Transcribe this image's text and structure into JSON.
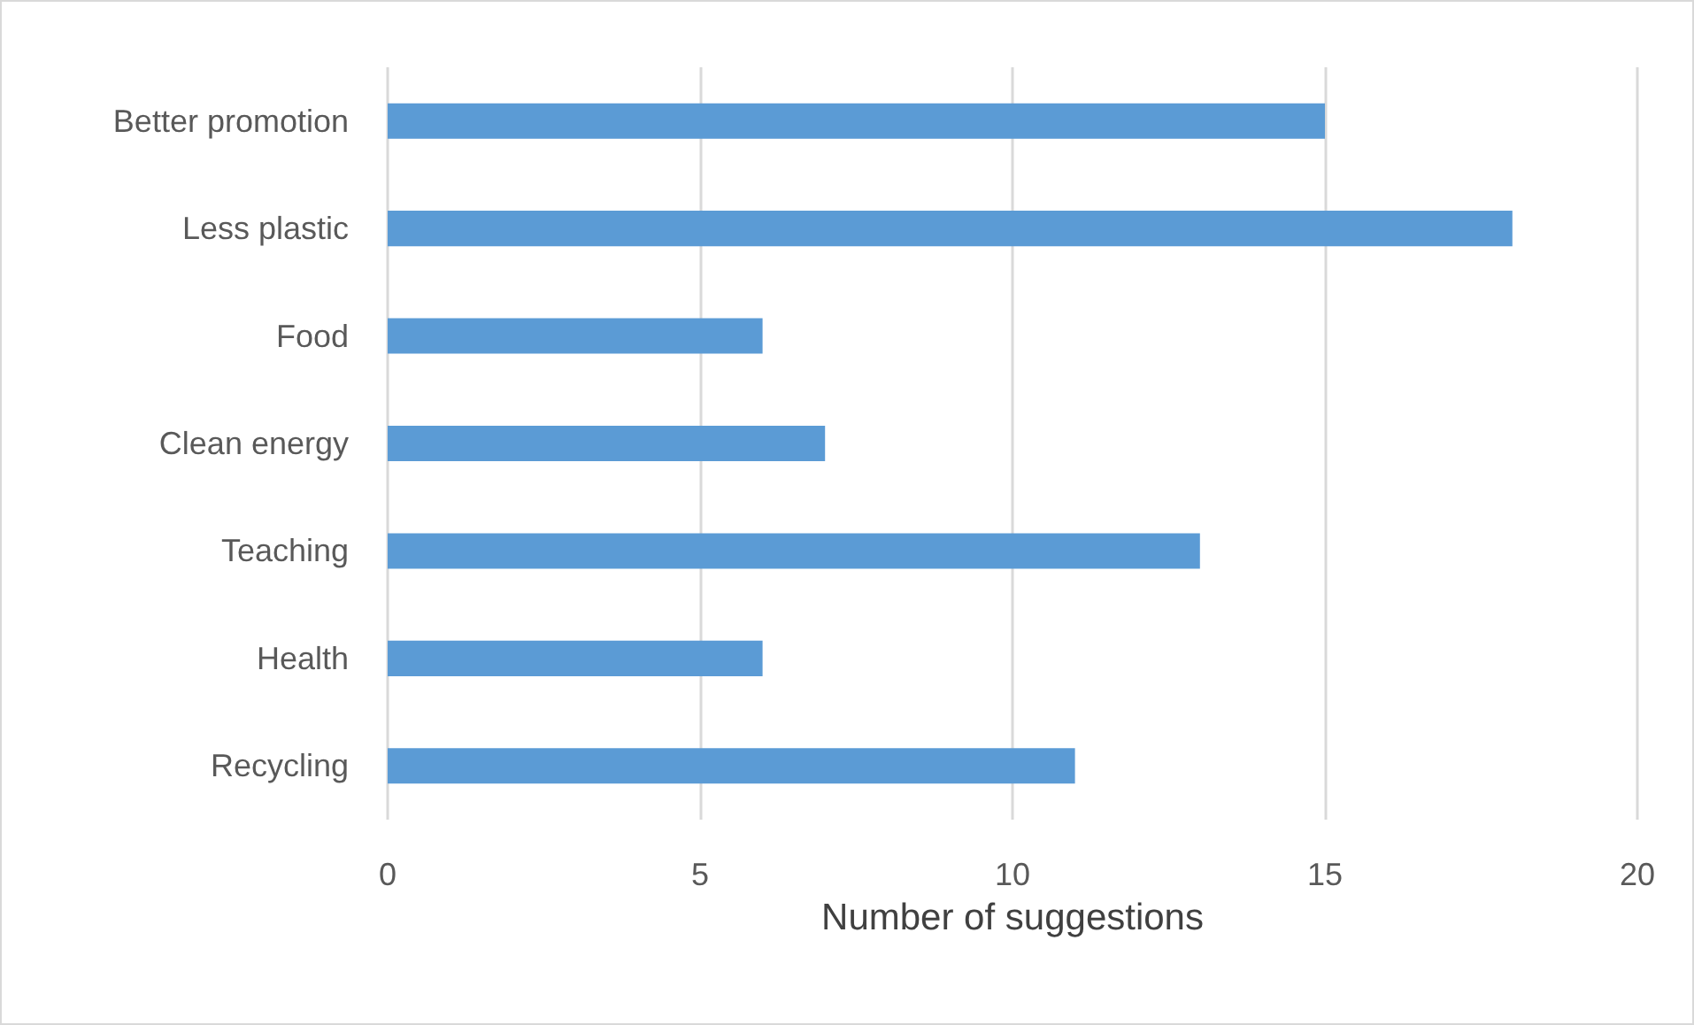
{
  "chart_data": {
    "type": "bar",
    "orientation": "horizontal",
    "categories": [
      "Better promotion",
      "Less plastic",
      "Food",
      "Clean energy",
      "Teaching",
      "Health",
      "Recycling"
    ],
    "values": [
      15,
      18,
      6,
      7,
      13,
      6,
      11
    ],
    "color": "#5b9bd5",
    "xlabel": "Number of suggestions",
    "xlim": [
      0,
      20
    ],
    "xticks": [
      0,
      5,
      10,
      15,
      20
    ],
    "grid": "x"
  }
}
